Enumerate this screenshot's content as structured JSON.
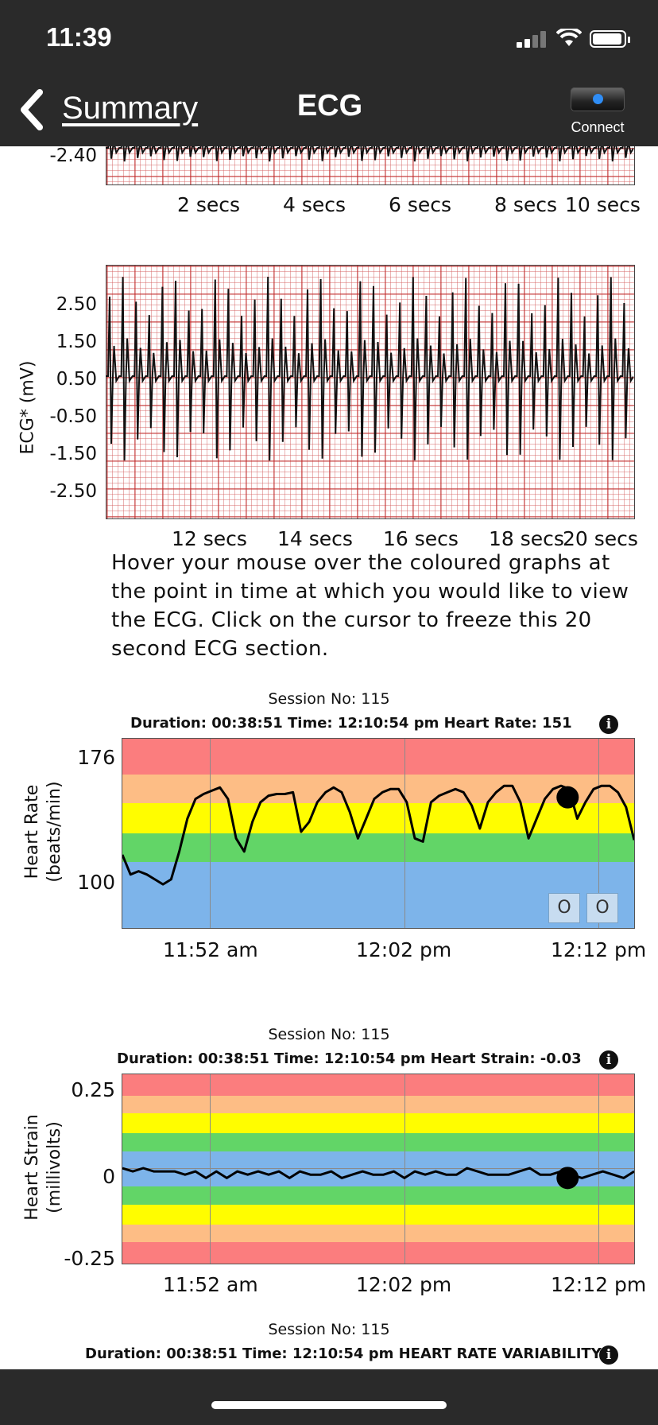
{
  "status_bar": {
    "time": "11:39"
  },
  "nav": {
    "back_label": "Summary",
    "title": "ECG",
    "connect_label": "Connect"
  },
  "ecg_top": {
    "y_tick_visible": "-2.40",
    "x_ticks": [
      "2 secs",
      "4 secs",
      "6 secs",
      "8 secs",
      "10 secs"
    ]
  },
  "ecg_bottom": {
    "y_label": "ECG* (mV)",
    "y_ticks": [
      "2.50",
      "1.50",
      "0.50",
      "-0.50",
      "-1.50",
      "-2.50"
    ],
    "x_ticks": [
      "12 secs",
      "14 secs",
      "16 secs",
      "18 secs",
      "20 secs"
    ]
  },
  "hint_text": "Hover your mouse over the coloured graphs at the point in time at which you would like to view the ECG. Click on the cursor to freeze this 20 second ECG section.",
  "hr_panel": {
    "session": "Session No: 115",
    "info": "Duration: 00:38:51   Time: 12:10:54 pm   Heart Rate: 151",
    "y_label_1": "Heart Rate",
    "y_label_2": "(beats/min)",
    "y_ticks": [
      "176",
      "100"
    ],
    "x_ticks": [
      "11:52 am",
      "12:02 pm",
      "12:12 pm"
    ],
    "markers": [
      "O",
      "O"
    ]
  },
  "strain_panel": {
    "session": "Session No: 115",
    "info": "Duration: 00:38:51   Time: 12:10:54 pm   Heart Strain: -0.03",
    "y_label_1": "Heart Strain",
    "y_label_2": "(millivolts)",
    "y_ticks": [
      "0.25",
      "0",
      "-0.25"
    ],
    "x_ticks": [
      "11:52 am",
      "12:02 pm",
      "12:12 pm"
    ]
  },
  "hrv_panel": {
    "session": "Session No: 115",
    "info": "Duration: 00:38:51   Time: 12:10:54 pm   HEART RATE VARIABILITY:"
  },
  "colors": {
    "zone_red": "#fb7d7e",
    "zone_orange": "#fdbd85",
    "zone_yellow": "#fffd00",
    "zone_green": "#62d567",
    "zone_blue": "#7db4ea",
    "trace": "#000000"
  },
  "chart_data": [
    {
      "type": "line",
      "title": "",
      "ylabel": "Heart Rate (beats/min)",
      "x_ticks": [
        "11:52 am",
        "12:02 pm",
        "12:12 pm"
      ],
      "y_ticks": [
        176,
        100
      ],
      "series": [
        {
          "values": [
            116,
            104,
            106,
            104,
            101,
            98,
            101,
            118,
            138,
            150,
            153,
            155,
            157,
            150,
            126,
            118,
            136,
            148,
            152,
            153,
            153,
            154,
            130,
            136,
            148,
            154,
            157,
            154,
            142,
            126,
            138,
            150,
            154,
            156,
            156,
            148,
            126,
            124,
            148,
            152,
            154,
            156,
            154,
            146,
            132,
            148,
            154,
            158,
            158,
            148,
            126,
            138,
            150,
            156,
            158,
            156,
            138,
            148,
            156,
            158,
            158,
            154,
            145,
            125
          ]
        }
      ],
      "cursor_value": 151
    },
    {
      "type": "line",
      "title": "",
      "ylabel": "Heart Strain (millivolts)",
      "x_ticks": [
        "11:52 am",
        "12:02 pm",
        "12:12 pm"
      ],
      "y_ticks": [
        0.25,
        0,
        -0.25
      ],
      "series": [
        {
          "values": [
            0.0,
            -0.01,
            0.0,
            -0.01,
            -0.01,
            -0.01,
            -0.02,
            -0.01,
            -0.03,
            -0.01,
            -0.03,
            -0.01,
            -0.02,
            -0.01,
            -0.02,
            -0.01,
            -0.03,
            -0.01,
            -0.02,
            -0.02,
            -0.01,
            -0.03,
            -0.02,
            -0.01,
            -0.02,
            -0.02,
            -0.01,
            -0.03,
            -0.01,
            -0.02,
            -0.01,
            -0.02,
            -0.02,
            0.0,
            -0.01,
            -0.02,
            -0.02,
            -0.02,
            -0.01,
            0.0,
            -0.02,
            -0.02,
            -0.01,
            -0.02,
            -0.03,
            -0.02,
            -0.01,
            -0.02,
            -0.03,
            -0.01
          ]
        }
      ],
      "cursor_value": -0.03
    }
  ]
}
